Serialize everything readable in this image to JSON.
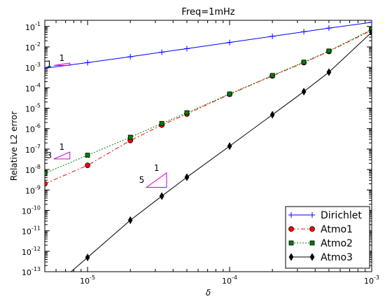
{
  "chart_data": {
    "type": "line",
    "title": "Freq=1mHz",
    "xlabel": "δ",
    "ylabel": "Relative L2 error",
    "xscale": "log",
    "yscale": "log",
    "xlim": [
      5e-06,
      0.001
    ],
    "ylim": [
      1e-13,
      0.2
    ],
    "grid": false,
    "legend_position": "lower-right",
    "x_ticks": [
      {
        "value": 1e-05,
        "base": "10",
        "exp": "-5"
      },
      {
        "value": 0.0001,
        "base": "10",
        "exp": "-4"
      },
      {
        "value": 0.001,
        "base": "10",
        "exp": "-3"
      }
    ],
    "y_ticks": [
      {
        "value": 0.1,
        "base": "10",
        "exp": "-1"
      },
      {
        "value": 0.01,
        "base": "10",
        "exp": "-2"
      },
      {
        "value": 0.001,
        "base": "10",
        "exp": "-3"
      },
      {
        "value": 0.0001,
        "base": "10",
        "exp": "-4"
      },
      {
        "value": 1e-05,
        "base": "10",
        "exp": "-5"
      },
      {
        "value": 1e-06,
        "base": "10",
        "exp": "-6"
      },
      {
        "value": 1e-07,
        "base": "10",
        "exp": "-7"
      },
      {
        "value": 1e-08,
        "base": "10",
        "exp": "-8"
      },
      {
        "value": 1e-09,
        "base": "10",
        "exp": "-9"
      },
      {
        "value": 1e-10,
        "base": "10",
        "exp": "-10"
      },
      {
        "value": 1e-11,
        "base": "10",
        "exp": "-11"
      },
      {
        "value": 1e-12,
        "base": "10",
        "exp": "-12"
      },
      {
        "value": 1e-13,
        "base": "10",
        "exp": "-13"
      }
    ],
    "series": [
      {
        "name": "Dirichlet",
        "color": "#0000ff",
        "marker": "plus",
        "line_style": "solid",
        "x": [
          5e-06,
          1e-05,
          2e-05,
          3.33e-05,
          5e-05,
          0.0001,
          0.0002,
          0.000333,
          0.0005,
          0.001
        ],
        "y": [
          0.0009,
          0.0017,
          0.0033,
          0.0055,
          0.0082,
          0.0165,
          0.033,
          0.055,
          0.083,
          0.16
        ]
      },
      {
        "name": "Atmo1",
        "color": "#ff0000",
        "marker": "circle",
        "line_style": "dashed",
        "x": [
          5e-06,
          1e-05,
          2e-05,
          3.33e-05,
          5e-05,
          0.0001,
          0.0002,
          0.000333,
          0.0005,
          0.001
        ],
        "y": [
          2e-09,
          1.6e-08,
          2.6e-07,
          1.5e-06,
          5.2e-06,
          4.8e-05,
          0.00038,
          0.0017,
          0.006,
          0.065
        ]
      },
      {
        "name": "Atmo2",
        "color": "#008000",
        "marker": "square",
        "line_style": "dotted",
        "x": [
          5e-06,
          1e-05,
          2e-05,
          3.33e-05,
          5e-05,
          0.0001,
          0.0002,
          0.000333,
          0.0005,
          0.001
        ],
        "y": [
          6.5e-09,
          5e-08,
          3.8e-07,
          1.8e-06,
          6e-06,
          5e-05,
          0.0004,
          0.0018,
          0.0063,
          0.072
        ]
      },
      {
        "name": "Atmo3",
        "color": "#000000",
        "marker": "diamond",
        "line_style": "solid",
        "x": [
          1e-05,
          2e-05,
          3.33e-05,
          5e-05,
          0.0001,
          0.0002,
          0.000333,
          0.0005,
          0.001
        ],
        "y": [
          5e-13,
          3.3e-11,
          5e-10,
          4.2e-09,
          1.4e-07,
          4.8e-06,
          6.5e-05,
          0.00058,
          0.052
        ]
      }
    ],
    "slope_triangles": [
      {
        "run_label": "1",
        "rise_label": "1",
        "color": "#cc00cc",
        "x0": 5.8e-06,
        "x1": 7.5e-06,
        "y_base": 0.00125,
        "rise": 1
      },
      {
        "run_label": "1",
        "rise_label": "3",
        "color": "#cc00cc",
        "x0": 5.8e-06,
        "x1": 7.5e-06,
        "y_base": 3.3e-08,
        "rise": 3
      },
      {
        "run_label": "1",
        "rise_label": "5",
        "color": "#cc00cc",
        "x0": 2.6e-05,
        "x1": 3.6e-05,
        "y_base": 1.35e-09,
        "rise": 5
      }
    ]
  }
}
